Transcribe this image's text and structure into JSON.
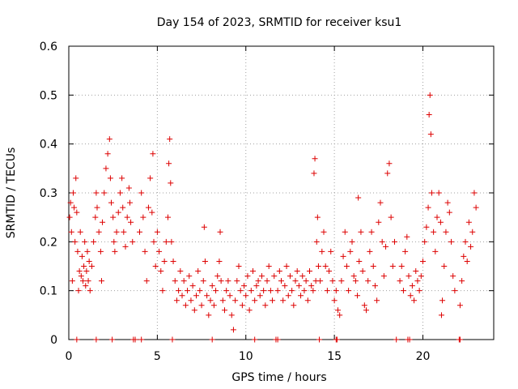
{
  "chart_data": {
    "type": "scatter",
    "title": "Day 154 of 2023, SRMTID for receiver ksu1",
    "xlabel": "GPS time / hours",
    "ylabel": "SRMTID / TECUs",
    "xlim": [
      0,
      24
    ],
    "ylim": [
      0,
      0.6
    ],
    "xticks": [
      0,
      5,
      10,
      15,
      20
    ],
    "xtick_labels": [
      "0",
      "5",
      "10",
      "15",
      "20"
    ],
    "yticks": [
      0,
      0.1,
      0.2,
      0.3,
      0.4,
      0.5,
      0.6
    ],
    "ytick_labels": [
      "0",
      "0.1",
      "0.2",
      "0.3",
      "0.4",
      "0.5",
      "0.6"
    ],
    "grid": true,
    "marker": "+",
    "color": "#dd0000",
    "series": [
      {
        "name": "SRMTID",
        "points": [
          [
            0.05,
            0.25
          ],
          [
            0.1,
            0.28
          ],
          [
            0.15,
            0.22
          ],
          [
            0.2,
            0.12
          ],
          [
            0.25,
            0.3
          ],
          [
            0.3,
            0.27
          ],
          [
            0.35,
            0.2
          ],
          [
            0.4,
            0.33
          ],
          [
            0.45,
            0.26
          ],
          [
            0.5,
            0.18
          ],
          [
            0.55,
            0.1
          ],
          [
            0.6,
            0.14
          ],
          [
            0.65,
            0.22
          ],
          [
            0.7,
            0.13
          ],
          [
            0.75,
            0.17
          ],
          [
            0.8,
            0.12
          ],
          [
            0.85,
            0.15
          ],
          [
            0.9,
            0.2
          ],
          [
            0.95,
            0.11
          ],
          [
            1.0,
            0.14
          ],
          [
            1.05,
            0.18
          ],
          [
            1.1,
            0.12
          ],
          [
            1.15,
            0.16
          ],
          [
            1.2,
            0.1
          ],
          [
            1.3,
            0.15
          ],
          [
            1.4,
            0.2
          ],
          [
            1.5,
            0.25
          ],
          [
            1.55,
            0.3
          ],
          [
            1.6,
            0.27
          ],
          [
            1.7,
            0.22
          ],
          [
            1.8,
            0.18
          ],
          [
            1.85,
            0.12
          ],
          [
            1.9,
            0.24
          ],
          [
            2.0,
            0.3
          ],
          [
            2.1,
            0.35
          ],
          [
            2.2,
            0.38
          ],
          [
            2.3,
            0.41
          ],
          [
            2.35,
            0.33
          ],
          [
            2.4,
            0.28
          ],
          [
            2.5,
            0.25
          ],
          [
            2.55,
            0.2
          ],
          [
            2.6,
            0.18
          ],
          [
            2.7,
            0.22
          ],
          [
            2.8,
            0.26
          ],
          [
            2.9,
            0.3
          ],
          [
            3.0,
            0.33
          ],
          [
            3.05,
            0.27
          ],
          [
            3.1,
            0.22
          ],
          [
            3.2,
            0.19
          ],
          [
            3.3,
            0.25
          ],
          [
            3.4,
            0.31
          ],
          [
            3.45,
            0.28
          ],
          [
            3.5,
            0.24
          ],
          [
            3.6,
            0.2
          ],
          [
            4.0,
            0.22
          ],
          [
            4.1,
            0.3
          ],
          [
            4.2,
            0.25
          ],
          [
            4.3,
            0.18
          ],
          [
            4.4,
            0.12
          ],
          [
            4.5,
            0.27
          ],
          [
            4.6,
            0.33
          ],
          [
            4.7,
            0.26
          ],
          [
            4.75,
            0.38
          ],
          [
            4.8,
            0.2
          ],
          [
            4.9,
            0.15
          ],
          [
            5.0,
            0.22
          ],
          [
            5.1,
            0.18
          ],
          [
            5.2,
            0.14
          ],
          [
            5.3,
            0.1
          ],
          [
            5.4,
            0.16
          ],
          [
            5.5,
            0.2
          ],
          [
            5.6,
            0.25
          ],
          [
            5.65,
            0.36
          ],
          [
            5.7,
            0.41
          ],
          [
            5.75,
            0.32
          ],
          [
            5.8,
            0.2
          ],
          [
            5.9,
            0.16
          ],
          [
            6.0,
            0.12
          ],
          [
            6.1,
            0.08
          ],
          [
            6.2,
            0.1
          ],
          [
            6.3,
            0.14
          ],
          [
            6.4,
            0.09
          ],
          [
            6.5,
            0.12
          ],
          [
            6.6,
            0.07
          ],
          [
            6.7,
            0.1
          ],
          [
            6.8,
            0.13
          ],
          [
            6.9,
            0.08
          ],
          [
            7.0,
            0.11
          ],
          [
            7.1,
            0.06
          ],
          [
            7.2,
            0.09
          ],
          [
            7.3,
            0.14
          ],
          [
            7.4,
            0.1
          ],
          [
            7.5,
            0.07
          ],
          [
            7.6,
            0.12
          ],
          [
            7.65,
            0.23
          ],
          [
            7.7,
            0.16
          ],
          [
            7.8,
            0.09
          ],
          [
            7.9,
            0.05
          ],
          [
            8.0,
            0.08
          ],
          [
            8.1,
            0.11
          ],
          [
            8.2,
            0.07
          ],
          [
            8.3,
            0.1
          ],
          [
            8.4,
            0.13
          ],
          [
            8.5,
            0.16
          ],
          [
            8.55,
            0.22
          ],
          [
            8.6,
            0.12
          ],
          [
            8.7,
            0.08
          ],
          [
            8.8,
            0.06
          ],
          [
            8.9,
            0.1
          ],
          [
            9.0,
            0.12
          ],
          [
            9.1,
            0.09
          ],
          [
            9.2,
            0.05
          ],
          [
            9.3,
            0.02
          ],
          [
            9.4,
            0.08
          ],
          [
            9.5,
            0.12
          ],
          [
            9.6,
            0.15
          ],
          [
            9.7,
            0.1
          ],
          [
            9.8,
            0.07
          ],
          [
            9.9,
            0.11
          ],
          [
            10.0,
            0.09
          ],
          [
            10.1,
            0.13
          ],
          [
            10.2,
            0.06
          ],
          [
            10.3,
            0.1
          ],
          [
            10.4,
            0.14
          ],
          [
            10.5,
            0.08
          ],
          [
            10.6,
            0.11
          ],
          [
            10.7,
            0.12
          ],
          [
            10.8,
            0.09
          ],
          [
            10.9,
            0.13
          ],
          [
            11.0,
            0.1
          ],
          [
            11.1,
            0.07
          ],
          [
            11.2,
            0.12
          ],
          [
            11.3,
            0.15
          ],
          [
            11.4,
            0.1
          ],
          [
            11.5,
            0.08
          ],
          [
            11.6,
            0.13
          ],
          [
            11.8,
            0.1
          ],
          [
            11.9,
            0.14
          ],
          [
            12.0,
            0.12
          ],
          [
            12.1,
            0.08
          ],
          [
            12.2,
            0.11
          ],
          [
            12.3,
            0.15
          ],
          [
            12.4,
            0.09
          ],
          [
            12.5,
            0.13
          ],
          [
            12.6,
            0.1
          ],
          [
            12.7,
            0.07
          ],
          [
            12.8,
            0.12
          ],
          [
            12.9,
            0.14
          ],
          [
            13.0,
            0.11
          ],
          [
            13.1,
            0.09
          ],
          [
            13.2,
            0.13
          ],
          [
            13.3,
            0.1
          ],
          [
            13.4,
            0.12
          ],
          [
            13.5,
            0.08
          ],
          [
            13.6,
            0.14
          ],
          [
            13.7,
            0.11
          ],
          [
            13.8,
            0.1
          ],
          [
            13.85,
            0.34
          ],
          [
            13.9,
            0.37
          ],
          [
            13.95,
            0.12
          ],
          [
            14.0,
            0.2
          ],
          [
            14.05,
            0.25
          ],
          [
            14.1,
            0.15
          ],
          [
            14.2,
            0.12
          ],
          [
            14.3,
            0.18
          ],
          [
            14.4,
            0.22
          ],
          [
            14.5,
            0.15
          ],
          [
            14.6,
            0.1
          ],
          [
            14.7,
            0.14
          ],
          [
            14.8,
            0.18
          ],
          [
            14.9,
            0.12
          ],
          [
            15.0,
            0.08
          ],
          [
            15.1,
            0.1
          ],
          [
            15.2,
            0.06
          ],
          [
            15.3,
            0.05
          ],
          [
            15.4,
            0.12
          ],
          [
            15.5,
            0.17
          ],
          [
            15.6,
            0.22
          ],
          [
            15.7,
            0.15
          ],
          [
            15.8,
            0.1
          ],
          [
            15.9,
            0.18
          ],
          [
            16.0,
            0.2
          ],
          [
            16.1,
            0.13
          ],
          [
            16.2,
            0.12
          ],
          [
            16.3,
            0.09
          ],
          [
            16.35,
            0.29
          ],
          [
            16.4,
            0.16
          ],
          [
            16.5,
            0.22
          ],
          [
            16.6,
            0.14
          ],
          [
            16.7,
            0.07
          ],
          [
            16.8,
            0.06
          ],
          [
            16.9,
            0.12
          ],
          [
            17.0,
            0.18
          ],
          [
            17.1,
            0.22
          ],
          [
            17.2,
            0.15
          ],
          [
            17.3,
            0.11
          ],
          [
            17.4,
            0.08
          ],
          [
            17.5,
            0.24
          ],
          [
            17.6,
            0.28
          ],
          [
            17.7,
            0.2
          ],
          [
            17.8,
            0.13
          ],
          [
            17.9,
            0.19
          ],
          [
            18.0,
            0.34
          ],
          [
            18.1,
            0.36
          ],
          [
            18.2,
            0.25
          ],
          [
            18.3,
            0.15
          ],
          [
            18.4,
            0.2
          ],
          [
            18.7,
            0.12
          ],
          [
            18.8,
            0.15
          ],
          [
            18.9,
            0.1
          ],
          [
            19.0,
            0.18
          ],
          [
            19.1,
            0.21
          ],
          [
            19.2,
            0.13
          ],
          [
            19.3,
            0.09
          ],
          [
            19.4,
            0.11
          ],
          [
            19.5,
            0.08
          ],
          [
            19.6,
            0.14
          ],
          [
            19.7,
            0.12
          ],
          [
            19.8,
            0.1
          ],
          [
            19.9,
            0.13
          ],
          [
            20.0,
            0.16
          ],
          [
            20.1,
            0.2
          ],
          [
            20.2,
            0.23
          ],
          [
            20.3,
            0.27
          ],
          [
            20.35,
            0.46
          ],
          [
            20.4,
            0.5
          ],
          [
            20.45,
            0.42
          ],
          [
            20.5,
            0.3
          ],
          [
            20.6,
            0.22
          ],
          [
            20.7,
            0.18
          ],
          [
            20.8,
            0.25
          ],
          [
            20.9,
            0.3
          ],
          [
            21.0,
            0.24
          ],
          [
            21.05,
            0.05
          ],
          [
            21.1,
            0.08
          ],
          [
            21.2,
            0.15
          ],
          [
            21.3,
            0.22
          ],
          [
            21.4,
            0.28
          ],
          [
            21.5,
            0.26
          ],
          [
            21.6,
            0.2
          ],
          [
            21.7,
            0.13
          ],
          [
            21.8,
            0.1
          ],
          [
            22.1,
            0.07
          ],
          [
            22.2,
            0.12
          ],
          [
            22.3,
            0.17
          ],
          [
            22.4,
            0.2
          ],
          [
            22.5,
            0.16
          ],
          [
            22.6,
            0.24
          ],
          [
            22.7,
            0.19
          ],
          [
            22.8,
            0.22
          ],
          [
            22.9,
            0.3
          ],
          [
            23.0,
            0.27
          ]
        ]
      }
    ],
    "zero_markers_x": [
      0.45,
      1.55,
      2.45,
      3.65,
      3.75,
      4.1,
      5.85,
      8.1,
      10.5,
      11.7,
      11.8,
      14.15,
      15.1,
      15.15,
      18.5,
      19.15,
      19.25,
      22.05,
      22.1
    ]
  }
}
